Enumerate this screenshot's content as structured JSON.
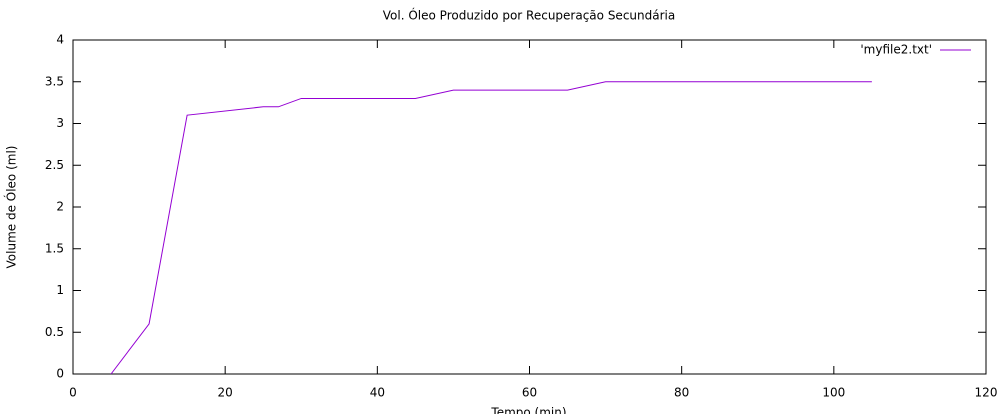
{
  "chart_data": {
    "type": "line",
    "title": "Vol. Óleo Produzido por Recuperação Secundária",
    "x_label": "Tempo (min)",
    "y_label": "Volume de Óleo (ml)",
    "x": [
      5,
      10,
      15,
      25,
      27,
      30,
      45,
      50,
      65,
      70,
      105
    ],
    "series": [
      {
        "name": "'myfile2.txt'",
        "color": "#9400d3",
        "values": [
          0,
          0.6,
          3.1,
          3.2,
          3.2,
          3.3,
          3.3,
          3.4,
          3.4,
          3.5,
          3.5
        ]
      }
    ],
    "xlim": [
      0,
      120
    ],
    "xticks": [
      0,
      20,
      40,
      60,
      80,
      100,
      120
    ],
    "ylim": [
      0,
      4
    ],
    "yticks": [
      0,
      0.5,
      1,
      1.5,
      2,
      2.5,
      3,
      3.5,
      4
    ],
    "grid": false,
    "legend": "top-right"
  }
}
